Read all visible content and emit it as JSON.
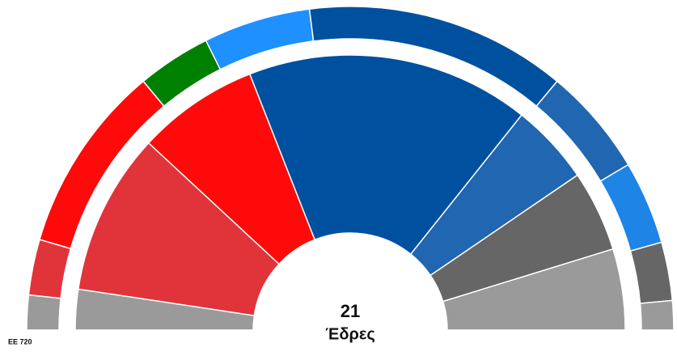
{
  "chart_data": {
    "type": "parliament",
    "total": 21,
    "total_label": "Έδρες",
    "outer_label": "ΕΕ 720",
    "inner": {
      "values": [
        1,
        4,
        3,
        7,
        2,
        2,
        2
      ],
      "colors": [
        "#9a9a9a",
        "#e0343a",
        "#ff0a0a",
        "#0050a0",
        "#2066b0",
        "#666666",
        "#9a9a9a"
      ]
    },
    "outer": {
      "values": [
        25,
        40,
        136,
        53,
        77,
        188,
        78,
        60,
        42,
        21
      ],
      "colors": [
        "#9a9a9a",
        "#e0343a",
        "#ff0a0a",
        "#008000",
        "#1e90ff",
        "#0050a0",
        "#2066b0",
        "#1e84e6",
        "#666666",
        "#9a9a9a"
      ]
    }
  }
}
